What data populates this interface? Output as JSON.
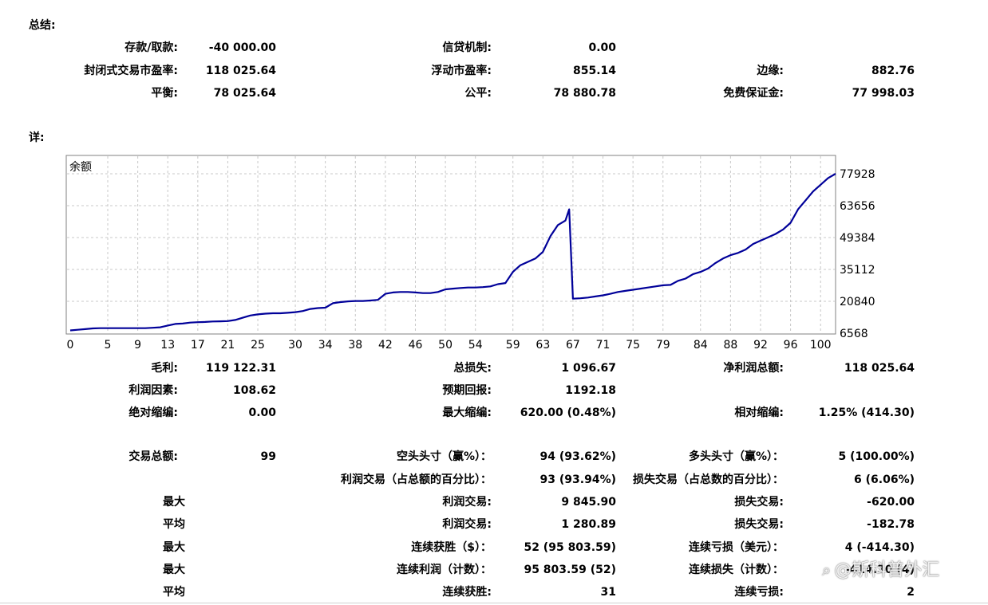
{
  "sections": {
    "summary_title": "总结:",
    "details_title": "详:"
  },
  "summary": {
    "deposit_label": "存款/取款:",
    "deposit_value": "-40 000.00",
    "credit_label": "信贷机制:",
    "credit_value": "0.00",
    "closed_pl_label": "封闭式交易市盈率:",
    "closed_pl_value": "118 025.64",
    "floating_pl_label": "浮动市盈率:",
    "floating_pl_value": "855.14",
    "margin_label": "边缘:",
    "margin_value": "882.76",
    "balance_label": "平衡:",
    "balance_value": "78 025.64",
    "equity_label": "公平:",
    "equity_value": "78 880.78",
    "free_margin_label": "免费保证金:",
    "free_margin_value": "77 998.03"
  },
  "chart_data": {
    "type": "line",
    "title": "余额",
    "x_ticks": [
      "0",
      "5",
      "9",
      "13",
      "17",
      "21",
      "25",
      "30",
      "34",
      "38",
      "42",
      "46",
      "50",
      "54",
      "59",
      "63",
      "67",
      "71",
      "75",
      "79",
      "84",
      "88",
      "92",
      "96",
      "100"
    ],
    "y_ticks": [
      "77928",
      "63656",
      "49384",
      "35112",
      "20840",
      "6568"
    ],
    "ylim": [
      6568,
      77928
    ],
    "xlim": [
      0,
      102
    ],
    "grid": true,
    "line_color": "#000099",
    "x": [
      0,
      1,
      2,
      3,
      4,
      5,
      6,
      7,
      8,
      9,
      10,
      11,
      12,
      13,
      14,
      15,
      16,
      17,
      18,
      19,
      20,
      21,
      22,
      23,
      24,
      25,
      26,
      27,
      28,
      29,
      30,
      31,
      32,
      33,
      34,
      35,
      36,
      37,
      38,
      39,
      40,
      41,
      42,
      43,
      44,
      45,
      46,
      47,
      48,
      49,
      50,
      51,
      52,
      53,
      54,
      55,
      56,
      57,
      58,
      59,
      60,
      61,
      62,
      63,
      64,
      65,
      66,
      66.5,
      67,
      68,
      69,
      70,
      71,
      72,
      73,
      74,
      75,
      76,
      77,
      78,
      79,
      80,
      81,
      82,
      83,
      84,
      85,
      86,
      87,
      88,
      89,
      90,
      91,
      92,
      93,
      94,
      95,
      96,
      97,
      98,
      99,
      100,
      101,
      102
    ],
    "values": [
      7800,
      8100,
      8400,
      8700,
      8800,
      8800,
      8800,
      8800,
      8800,
      8800,
      8800,
      9000,
      9200,
      10000,
      10700,
      10900,
      11300,
      11500,
      11600,
      11800,
      11900,
      12000,
      12500,
      13500,
      14500,
      15000,
      15300,
      15500,
      15500,
      15700,
      16000,
      16500,
      17400,
      17800,
      18000,
      20000,
      20500,
      20800,
      21000,
      21000,
      21200,
      21500,
      24200,
      24800,
      25000,
      25000,
      24800,
      24500,
      24500,
      25000,
      26200,
      26500,
      26800,
      27000,
      27000,
      27200,
      27500,
      28500,
      29000,
      34000,
      37000,
      38500,
      40000,
      43000,
      50000,
      55000,
      57000,
      62000,
      22000,
      22200,
      22500,
      23000,
      23500,
      24200,
      25000,
      25500,
      26000,
      26500,
      27000,
      27500,
      28000,
      28200,
      30000,
      31000,
      33000,
      34000,
      35500,
      38000,
      40000,
      41500,
      42500,
      44000,
      46500,
      48000,
      49500,
      51000,
      53000,
      56000,
      62000,
      66000,
      70000,
      73000,
      76000,
      77928
    ]
  },
  "stats": {
    "gross_profit_label": "毛利:",
    "gross_profit_value": "119 122.31",
    "gross_loss_label": "总损失:",
    "gross_loss_value": "1 096.67",
    "total_net_profit_label": "净利润总额:",
    "total_net_profit_value": "118 025.64",
    "profit_factor_label": "利润因素:",
    "profit_factor_value": "108.62",
    "expected_payoff_label": "预期回报:",
    "expected_payoff_value": "1192.18",
    "abs_drawdown_label": "绝对缩编:",
    "abs_drawdown_value": "0.00",
    "max_drawdown_label": "最大缩编:",
    "max_drawdown_value": "620.00 (0.48%)",
    "rel_drawdown_label": "相对缩编:",
    "rel_drawdown_value": "1.25% (414.30)",
    "total_trades_label": "交易总额:",
    "total_trades_value": "99",
    "short_positions_label": "空头头寸（赢%）：",
    "short_positions_value": "94 (93.62%)",
    "long_positions_label": "多头头寸（赢%）：",
    "long_positions_value": "5 (100.00%)",
    "profit_trades_label": "利润交易（占总额的百分比）：",
    "profit_trades_value": "93 (93.94%)",
    "loss_trades_label": "损失交易（占总数的百分比）：",
    "loss_trades_value": "6 (6.06%)",
    "largest_label": "最大",
    "largest_profit_label": "利润交易:",
    "largest_profit_value": "9 845.90",
    "largest_loss_label": "损失交易:",
    "largest_loss_value": "-620.00",
    "average_label": "平均",
    "average_profit_label": "利润交易:",
    "average_profit_value": "1 280.89",
    "average_loss_label": "损失交易:",
    "average_loss_value": "-182.78",
    "max_consec_label": "最大",
    "max_consec_wins_label": "连续获胜（$）：",
    "max_consec_wins_value": "52 (95 803.59)",
    "max_consec_losses_label": "连续亏损（美元）：",
    "max_consec_losses_value": "4 (-414.30)",
    "max_consec_profit_label_row": "最大",
    "max_consec_profit_label": "连续利润（计数）：",
    "max_consec_profit_value": "95 803.59 (52)",
    "max_consec_loss_label": "连续损失（计数）：",
    "max_consec_loss_value": "-414.30 (4)",
    "avg_consec_label": "平均",
    "avg_consec_wins_label": "连续获胜:",
    "avg_consec_wins_value": "31",
    "avg_consec_losses_label": "连续亏损:",
    "avg_consec_losses_value": "2"
  },
  "watermark": {
    "icon": "weibo-icon",
    "text": "@斯科普外汇"
  }
}
